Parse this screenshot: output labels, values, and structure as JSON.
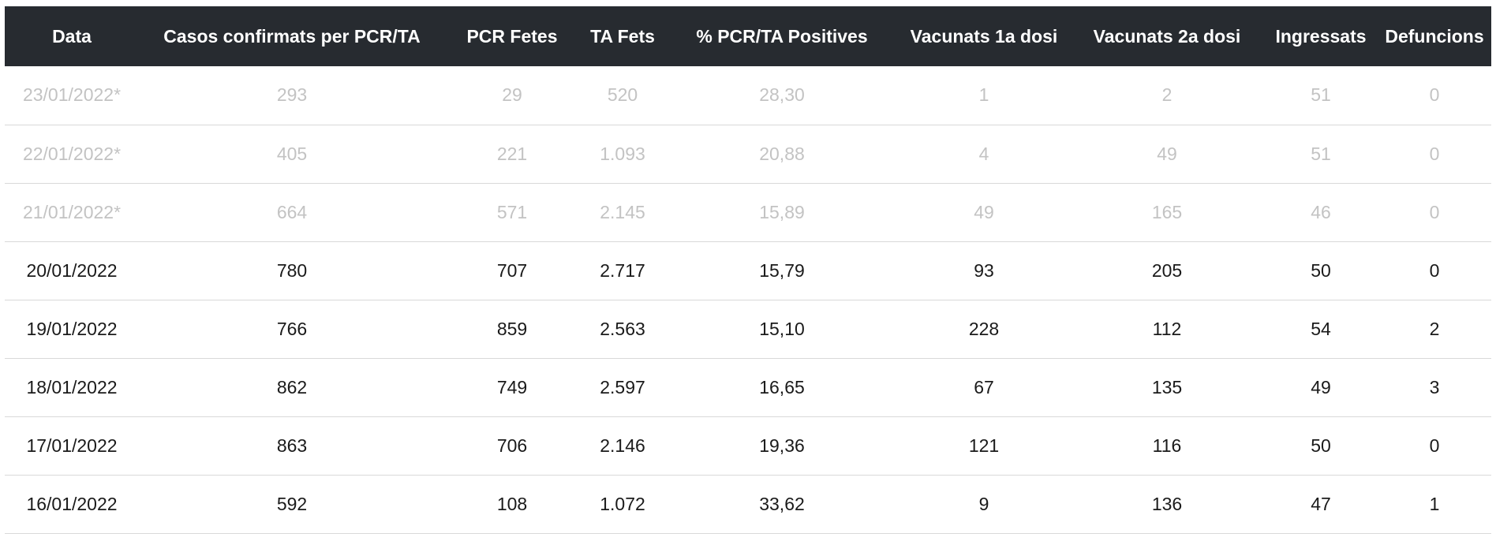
{
  "table": {
    "headers": [
      "Data",
      "Casos confirmats per PCR/TA",
      "PCR Fetes",
      "TA Fets",
      "% PCR/TA Positives",
      "Vacunats 1a dosi",
      "Vacunats 2a dosi",
      "Ingressats",
      "Defuncions"
    ],
    "rows": [
      {
        "provisional": true,
        "cells": [
          "23/01/2022*",
          "293",
          "29",
          "520",
          "28,30",
          "1",
          "2",
          "51",
          "0"
        ]
      },
      {
        "provisional": true,
        "cells": [
          "22/01/2022*",
          "405",
          "221",
          "1.093",
          "20,88",
          "4",
          "49",
          "51",
          "0"
        ]
      },
      {
        "provisional": true,
        "cells": [
          "21/01/2022*",
          "664",
          "571",
          "2.145",
          "15,89",
          "49",
          "165",
          "46",
          "0"
        ]
      },
      {
        "provisional": false,
        "cells": [
          "20/01/2022",
          "780",
          "707",
          "2.717",
          "15,79",
          "93",
          "205",
          "50",
          "0"
        ]
      },
      {
        "provisional": false,
        "cells": [
          "19/01/2022",
          "766",
          "859",
          "2.563",
          "15,10",
          "228",
          "112",
          "54",
          "2"
        ]
      },
      {
        "provisional": false,
        "cells": [
          "18/01/2022",
          "862",
          "749",
          "2.597",
          "16,65",
          "67",
          "135",
          "49",
          "3"
        ]
      },
      {
        "provisional": false,
        "cells": [
          "17/01/2022",
          "863",
          "706",
          "2.146",
          "19,36",
          "121",
          "116",
          "50",
          "0"
        ]
      },
      {
        "provisional": false,
        "cells": [
          "16/01/2022",
          "592",
          "108",
          "1.072",
          "33,62",
          "9",
          "136",
          "47",
          "1"
        ]
      }
    ]
  },
  "colors": {
    "header_bg": "#272b30",
    "header_text": "#ffffff",
    "provisional_text": "#c3c3c3",
    "row_border": "#d9d9d9"
  }
}
